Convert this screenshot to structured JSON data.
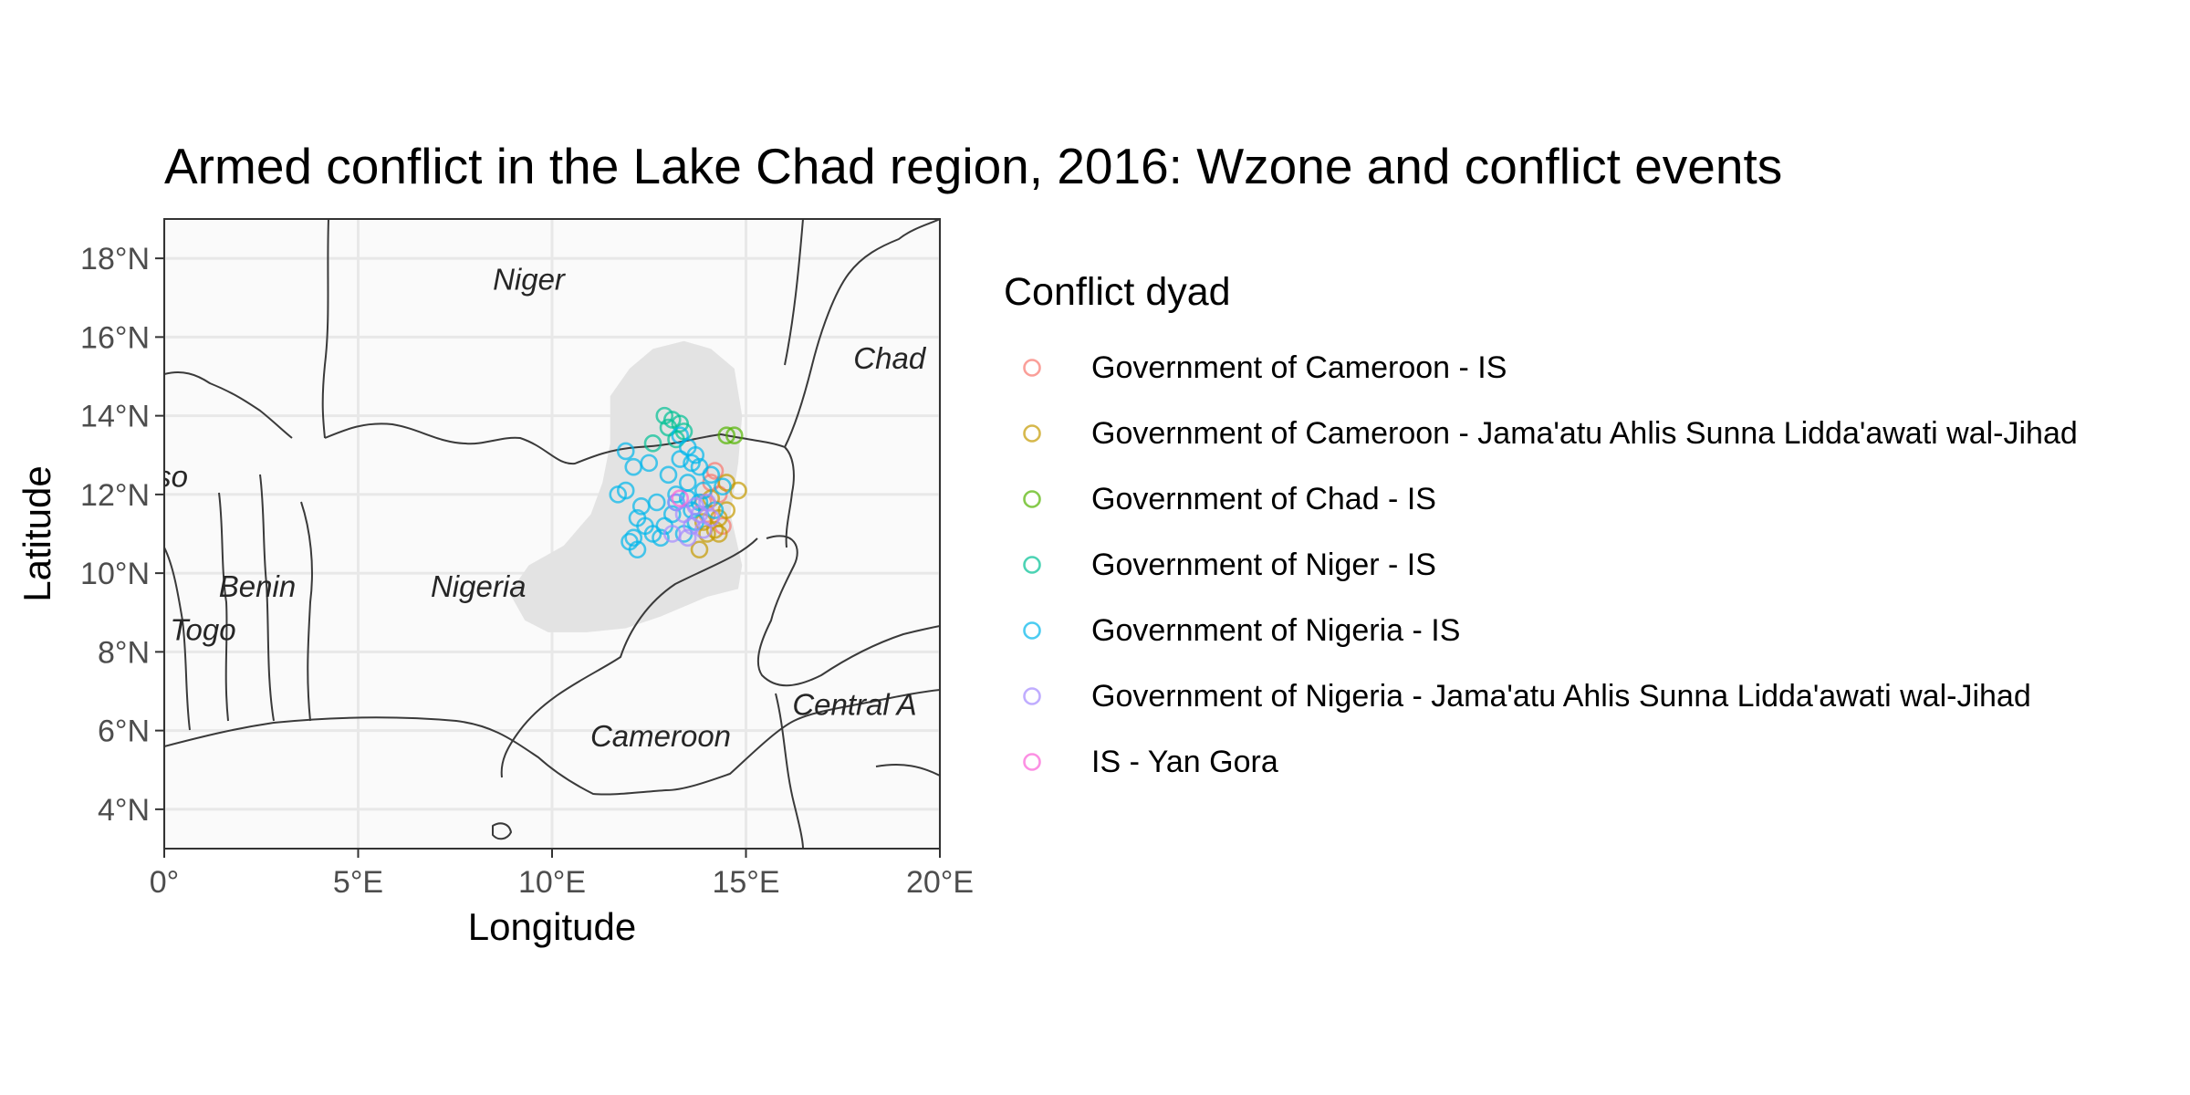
{
  "title": "Armed conflict in the Lake Chad region, 2016: Wzone and conflict events",
  "chart_data": {
    "type": "scatter",
    "title": "Armed conflict in the Lake Chad region, 2016: Wzone and conflict events",
    "xlabel": "Longitude",
    "ylabel": "Latitude",
    "xlim": [
      0,
      20
    ],
    "ylim": [
      3,
      19
    ],
    "x_ticks": [
      "0°",
      "5°E",
      "10°E",
      "15°E",
      "20°E"
    ],
    "x_tick_values": [
      0,
      5,
      10,
      15,
      20
    ],
    "y_ticks": [
      "4°N",
      "6°N",
      "8°N",
      "10°N",
      "12°N",
      "14°N",
      "16°N",
      "18°N"
    ],
    "y_tick_values": [
      4,
      6,
      8,
      10,
      12,
      14,
      16,
      18
    ],
    "grid": true,
    "legend_title": "Conflict dyad",
    "legend_position": "right",
    "countries": [
      {
        "name": "Niger",
        "lon": 9.4,
        "lat": 17.2
      },
      {
        "name": "Chad",
        "lon": 18.7,
        "lat": 15.2
      },
      {
        "name": "so",
        "lon": 0.2,
        "lat": 12.2
      },
      {
        "name": "Benin",
        "lon": 2.4,
        "lat": 9.4
      },
      {
        "name": "Nigeria",
        "lon": 8.1,
        "lat": 9.4
      },
      {
        "name": "Togo",
        "lon": 1.0,
        "lat": 8.3
      },
      {
        "name": "Central A",
        "lon": 17.8,
        "lat": 6.4
      },
      {
        "name": "Cameroon",
        "lon": 12.8,
        "lat": 5.6
      }
    ],
    "wzone": [
      [
        11.5,
        13.3
      ],
      [
        11.5,
        14.5
      ],
      [
        12.0,
        15.2
      ],
      [
        12.6,
        15.7
      ],
      [
        13.4,
        15.9
      ],
      [
        14.1,
        15.7
      ],
      [
        14.7,
        15.2
      ],
      [
        14.9,
        14.0
      ],
      [
        14.8,
        12.8
      ],
      [
        14.6,
        11.5
      ],
      [
        14.9,
        10.2
      ],
      [
        14.8,
        9.6
      ],
      [
        14.0,
        9.4
      ],
      [
        12.8,
        8.9
      ],
      [
        11.9,
        8.6
      ],
      [
        10.9,
        8.5
      ],
      [
        9.9,
        8.5
      ],
      [
        9.3,
        8.8
      ],
      [
        8.9,
        9.5
      ],
      [
        9.4,
        10.2
      ],
      [
        10.3,
        10.7
      ],
      [
        11.0,
        11.5
      ],
      [
        11.3,
        12.3
      ],
      [
        11.5,
        13.3
      ]
    ],
    "series": [
      {
        "name": "Government of Cameroon - IS",
        "color": "#F8766D",
        "points": [
          [
            14.1,
            12.3
          ],
          [
            14.3,
            12.0
          ],
          [
            14.0,
            11.5
          ],
          [
            14.4,
            11.2
          ],
          [
            14.2,
            12.6
          ],
          [
            13.9,
            11.8
          ]
        ]
      },
      {
        "name": "Government of Cameroon - Jama'atu Ahlis Sunna Lidda'awati wal-Jihad",
        "color": "#C49A00",
        "points": [
          [
            14.8,
            12.1
          ],
          [
            14.5,
            12.3
          ],
          [
            14.2,
            11.1
          ],
          [
            14.0,
            11.0
          ],
          [
            13.8,
            10.6
          ],
          [
            14.3,
            11.4
          ],
          [
            14.1,
            11.9
          ],
          [
            14.5,
            11.6
          ],
          [
            14.3,
            11.0
          ],
          [
            13.9,
            11.3
          ]
        ]
      },
      {
        "name": "Government of Chad - IS",
        "color": "#53B400",
        "points": [
          [
            14.5,
            13.5
          ],
          [
            14.7,
            13.5
          ]
        ]
      },
      {
        "name": "Government of Niger - IS",
        "color": "#00C094",
        "points": [
          [
            12.9,
            14.0
          ],
          [
            13.1,
            13.9
          ],
          [
            13.3,
            13.8
          ],
          [
            13.4,
            13.6
          ],
          [
            13.2,
            13.4
          ],
          [
            12.6,
            13.3
          ],
          [
            13.0,
            13.7
          ]
        ]
      },
      {
        "name": "Government of Nigeria - IS",
        "color": "#00B6EB",
        "points": [
          [
            11.9,
            13.1
          ],
          [
            12.1,
            12.7
          ],
          [
            12.5,
            12.8
          ],
          [
            11.9,
            12.1
          ],
          [
            11.7,
            12.0
          ],
          [
            12.3,
            11.7
          ],
          [
            12.2,
            11.4
          ],
          [
            12.4,
            11.2
          ],
          [
            12.6,
            11.0
          ],
          [
            12.1,
            10.9
          ],
          [
            12.2,
            10.6
          ],
          [
            12.8,
            10.9
          ],
          [
            13.1,
            11.5
          ],
          [
            13.2,
            12.0
          ],
          [
            13.5,
            12.3
          ],
          [
            13.6,
            12.8
          ],
          [
            13.7,
            13.0
          ],
          [
            13.3,
            13.5
          ],
          [
            13.5,
            11.9
          ],
          [
            13.0,
            12.5
          ],
          [
            12.9,
            11.2
          ],
          [
            13.4,
            11.0
          ],
          [
            13.7,
            11.3
          ],
          [
            13.9,
            12.1
          ],
          [
            14.1,
            12.5
          ],
          [
            13.6,
            11.6
          ],
          [
            13.3,
            12.9
          ],
          [
            12.7,
            11.8
          ],
          [
            13.8,
            12.7
          ],
          [
            14.2,
            11.6
          ],
          [
            14.4,
            12.2
          ],
          [
            13.5,
            13.2
          ],
          [
            13.8,
            11.8
          ],
          [
            12.0,
            10.8
          ],
          [
            13.2,
            11.8
          ]
        ]
      },
      {
        "name": "Government of Nigeria - Jama'atu Ahlis Sunna Lidda'awati wal-Jihad",
        "color": "#A58AFF",
        "points": [
          [
            13.2,
            11.8
          ],
          [
            13.4,
            11.5
          ],
          [
            13.6,
            11.2
          ],
          [
            13.8,
            11.5
          ],
          [
            14.0,
            11.8
          ],
          [
            13.5,
            10.9
          ],
          [
            13.9,
            11.1
          ],
          [
            13.1,
            11.0
          ],
          [
            13.7,
            11.7
          ],
          [
            14.1,
            11.4
          ]
        ]
      },
      {
        "name": "IS - Yan Gora",
        "color": "#FB61D7",
        "points": [
          [
            13.3,
            11.9
          ]
        ]
      }
    ]
  }
}
